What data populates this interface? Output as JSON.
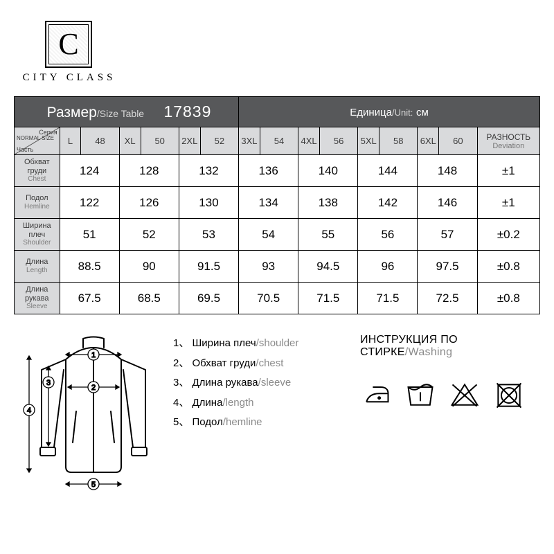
{
  "brand": {
    "letter": "C",
    "name": "CITY CLASS"
  },
  "table": {
    "header": {
      "title_ru": "Размер",
      "title_en": "Size Table",
      "code": "17839",
      "unit_ru": "Единица",
      "unit_en": "Unit:",
      "unit_val": "см"
    },
    "corner": {
      "top": "Серия",
      "mid": "NORMAL SIZE",
      "bot": "Часть"
    },
    "sizes": [
      "L",
      "XL",
      "2XL",
      "3XL",
      "4XL",
      "5XL",
      "6XL"
    ],
    "numbers": [
      "48",
      "50",
      "52",
      "54",
      "56",
      "58",
      "60"
    ],
    "dev_head": {
      "ru": "РАЗНОСТЬ",
      "en": "Deviation"
    },
    "rows": [
      {
        "ru": "Обхват груди",
        "en": "Chest",
        "vals": [
          "124",
          "128",
          "132",
          "136",
          "140",
          "144",
          "148"
        ],
        "dev": "±1"
      },
      {
        "ru": "Подол",
        "en": "Hemline",
        "vals": [
          "122",
          "126",
          "130",
          "134",
          "138",
          "142",
          "146"
        ],
        "dev": "±1"
      },
      {
        "ru": "Ширина плеч",
        "en": "Shoulder",
        "vals": [
          "51",
          "52",
          "53",
          "54",
          "55",
          "56",
          "57"
        ],
        "dev": "±0.2"
      },
      {
        "ru": "Длина",
        "en": "Length",
        "vals": [
          "88.5",
          "90",
          "91.5",
          "93",
          "94.5",
          "96",
          "97.5"
        ],
        "dev": "±0.8"
      },
      {
        "ru": "Длина рукава",
        "en": "Sleeve",
        "vals": [
          "67.5",
          "68.5",
          "69.5",
          "70.5",
          "71.5",
          "71.5",
          "72.5"
        ],
        "dev": "±0.8"
      }
    ]
  },
  "legend": [
    {
      "n": "1",
      "ru": "Ширина плеч",
      "en": "shoulder"
    },
    {
      "n": "2",
      "ru": "Обхват груди",
      "en": "chest"
    },
    {
      "n": "3",
      "ru": "Длина рукава",
      "en": "sleeve"
    },
    {
      "n": "4",
      "ru": "Длина",
      "en": "length"
    },
    {
      "n": "5",
      "ru": "Подол",
      "en": "hemline"
    }
  ],
  "washing": {
    "title_ru": "ИНСТРУКЦИЯ ПО СТИРКЕ",
    "title_en": "Washing"
  },
  "colors": {
    "header_bg": "#57585a",
    "sub_bg": "#d9dadc",
    "text": "#000000",
    "muted": "#8a8a8a"
  }
}
